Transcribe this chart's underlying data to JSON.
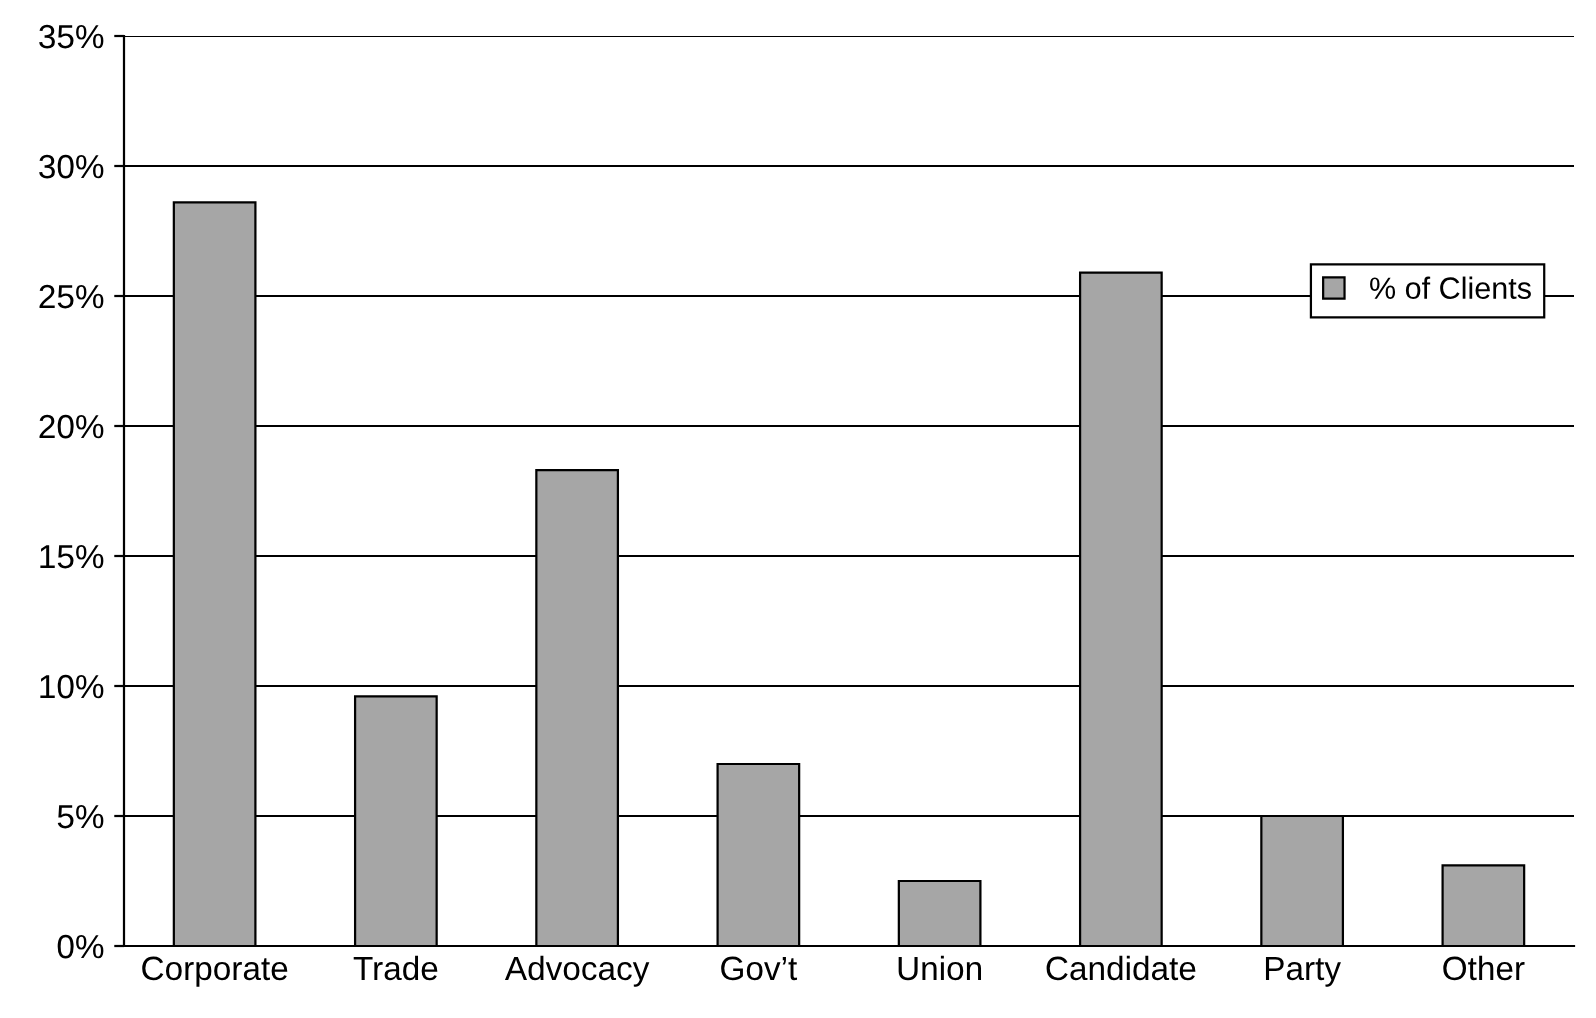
{
  "chart_data": {
    "type": "bar",
    "categories": [
      "Corporate",
      "Trade",
      "Advocacy",
      "Gov’t",
      "Union",
      "Candidate",
      "Party",
      "Other"
    ],
    "series": [
      {
        "name": "% of Clients",
        "color": "#a6a6a6",
        "values": [
          28.6,
          9.6,
          18.3,
          7.0,
          2.5,
          25.9,
          5.0,
          3.1
        ]
      }
    ],
    "ylim": [
      0,
      35
    ],
    "yticks": [
      {
        "value": 0,
        "label": "0%"
      },
      {
        "value": 5,
        "label": "5%"
      },
      {
        "value": 10,
        "label": "10%"
      },
      {
        "value": 15,
        "label": "15%"
      },
      {
        "value": 20,
        "label": "20%"
      },
      {
        "value": 25,
        "label": "25%"
      },
      {
        "value": 30,
        "label": "30%"
      },
      {
        "value": 35,
        "label": "35%"
      }
    ],
    "grid": "y",
    "legend": "right"
  }
}
